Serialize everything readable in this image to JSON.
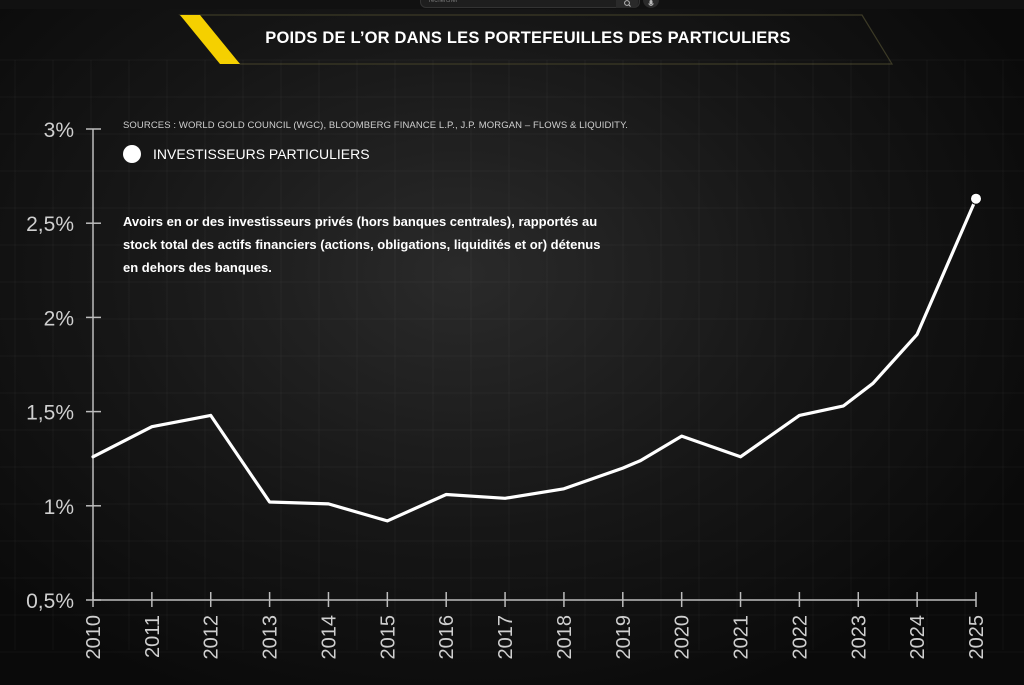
{
  "browser": {
    "search_placeholder": "rechercher",
    "search_icon": "magnifier-icon",
    "mic_icon": "microphone-icon"
  },
  "colors": {
    "background": "#0b0b0b",
    "accent": "#f5d000",
    "line": "#ffffff",
    "text_muted": "#cfcfcf"
  },
  "header": {
    "title": "POIDS DE L’OR DANS LES PORTEFEUILLES DES PARTICULIERS"
  },
  "chart_data": {
    "type": "line",
    "title": "POIDS DE L’OR DANS LES PORTEFEUILLES DES PARTICULIERS",
    "source": "SOURCES : WORLD GOLD COUNCIL (WGC), BLOOMBERG FINANCE L.P., J.P. MORGAN – FLOWS & LIQUIDITY.",
    "annotation": "Avoirs en or des investisseurs privés (hors banques centrales), rapportés au stock total des actifs financiers (actions, obligations, liquidités et or) détenus en dehors des banques.",
    "x": [
      2010,
      2011,
      2012,
      2013,
      2014,
      2015,
      2016,
      2017,
      2018,
      2019,
      2019.3,
      2020,
      2021,
      2022,
      2022.75,
      2023.25,
      2024,
      2025
    ],
    "series": [
      {
        "name": "INVESTISSEURS PARTICULIERS",
        "color": "#ffffff",
        "values": [
          1.26,
          1.42,
          1.48,
          1.02,
          1.01,
          0.92,
          1.06,
          1.04,
          1.09,
          1.2,
          1.24,
          1.37,
          1.26,
          1.48,
          1.53,
          1.65,
          1.91,
          2.63
        ]
      }
    ],
    "x_ticks": [
      "2010",
      "2011",
      "2012",
      "2013",
      "2014",
      "2015",
      "2016",
      "2017",
      "2018",
      "2019",
      "2020",
      "2021",
      "2022",
      "2023",
      "2024",
      "2025"
    ],
    "y_ticks": [
      "0,5%",
      "1%",
      "1,5%",
      "2%",
      "2,5%",
      "3%"
    ],
    "y_tick_values": [
      0.5,
      1,
      1.5,
      2,
      2.5,
      3
    ],
    "xlim": [
      2010,
      2025
    ],
    "ylim": [
      0.5,
      3
    ],
    "ylabel": "",
    "xlabel": "",
    "grid": true,
    "legend_position": "top-left",
    "endpoint_marker": true
  }
}
